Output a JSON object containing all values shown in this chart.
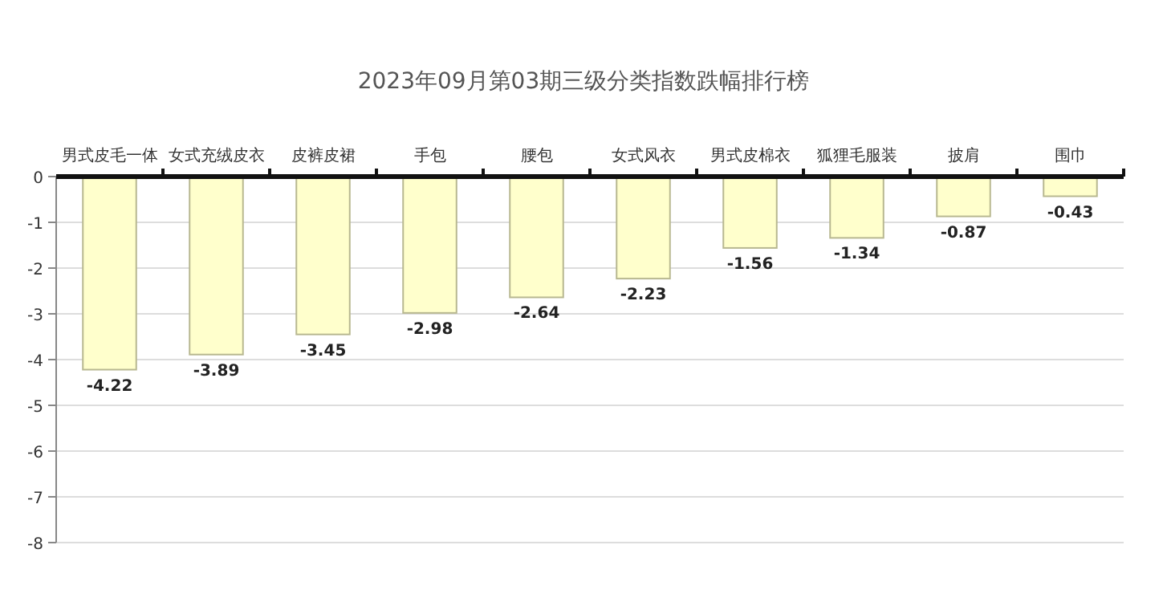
{
  "chart_data": {
    "type": "bar",
    "title": "2023年09月第03期三级分类指数跌幅排行榜",
    "categories": [
      "男式皮毛一体",
      "女式充绒皮衣",
      "皮裤皮裙",
      "手包",
      "腰包",
      "女式风衣",
      "男式皮棉衣",
      "狐狸毛服装",
      "披肩",
      "围巾"
    ],
    "values": [
      -4.22,
      -3.89,
      -3.45,
      -2.98,
      -2.64,
      -2.23,
      -1.56,
      -1.34,
      -0.87,
      -0.43
    ],
    "color": "#ffffcc",
    "ylim": [
      -8,
      0
    ],
    "yticks": [
      0,
      -1,
      -2,
      -3,
      -4,
      -5,
      -6,
      -7,
      -8
    ],
    "grid": "y",
    "data_labels": true
  }
}
